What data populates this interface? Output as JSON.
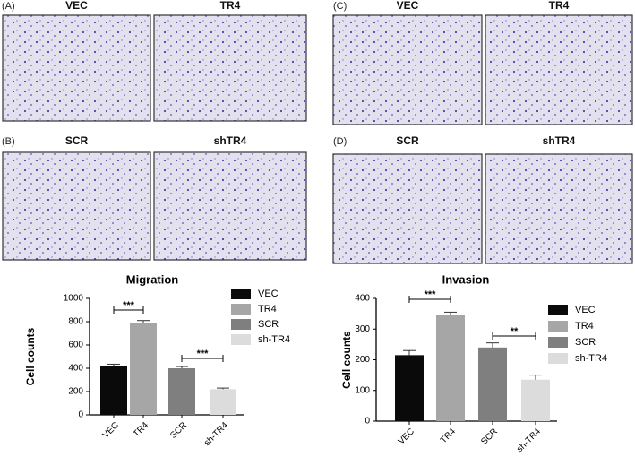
{
  "panels": [
    {
      "label": "(A)",
      "images": [
        "VEC",
        "TR4"
      ]
    },
    {
      "label": "(B)",
      "images": [
        "SCR",
        "shTR4"
      ]
    },
    {
      "label": "(C)",
      "images": [
        "VEC",
        "TR4"
      ]
    },
    {
      "label": "(D)",
      "images": [
        "SCR",
        "shTR4"
      ]
    }
  ],
  "chart_data": [
    {
      "type": "bar",
      "title": "Migration",
      "y_label": "Cell counts",
      "categories": [
        "VEC",
        "TR4",
        "SCR",
        "sh-TR4"
      ],
      "values": [
        420,
        790,
        400,
        220
      ],
      "errors": [
        15,
        20,
        15,
        10
      ],
      "colors": [
        "#0a0a0a",
        "#a6a6a6",
        "#7f7f7f",
        "#dcdcdc"
      ],
      "ylim": [
        0,
        1000
      ],
      "yticks": [
        0,
        200,
        400,
        600,
        800,
        1000
      ],
      "annotations": [
        "***",
        "***"
      ],
      "legend": "right"
    },
    {
      "type": "bar",
      "title": "Invasion",
      "y_label": "Cell counts",
      "categories": [
        "VEC",
        "TR4",
        "SCR",
        "sh-TR4"
      ],
      "values": [
        215,
        347,
        240,
        135
      ],
      "errors": [
        15,
        8,
        15,
        15
      ],
      "colors": [
        "#0a0a0a",
        "#a6a6a6",
        "#7f7f7f",
        "#dcdcdc"
      ],
      "ylim": [
        0,
        400
      ],
      "yticks": [
        0,
        100,
        200,
        300,
        400
      ],
      "annotations": [
        "***",
        "**"
      ],
      "legend": "right"
    }
  ]
}
